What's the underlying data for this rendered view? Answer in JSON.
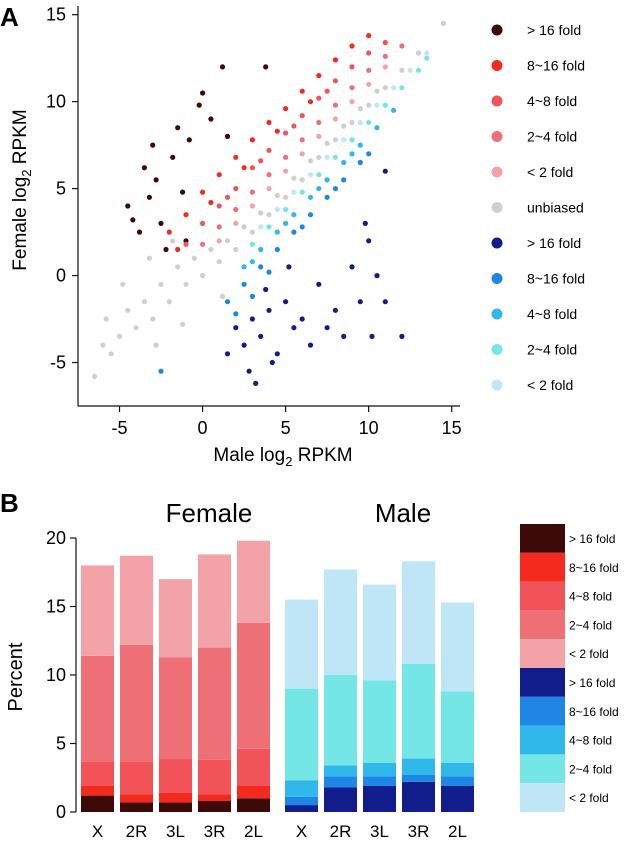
{
  "colors": {
    "female": [
      "#3d0a07",
      "#f42a1f",
      "#f15359",
      "#ef6f76",
      "#f3a3a8"
    ],
    "male": [
      "#101d8a",
      "#1f86e6",
      "#2fb8e9",
      "#74e6e6",
      "#bfe6f6"
    ],
    "unbiased": "#cfcfcf"
  },
  "chart_data": [
    {
      "panel": "A",
      "type": "scatter",
      "xlabel_pre": "Male log",
      "xlabel_sub": "2",
      "xlabel_post": " RPKM",
      "ylabel_pre": "Female log",
      "ylabel_sub": "2",
      "ylabel_post": " RPKM",
      "xlim": [
        -7.5,
        15.5
      ],
      "ylim": [
        -7.5,
        15.5
      ],
      "xticks": [
        -5,
        0,
        5,
        10,
        15
      ],
      "yticks": [
        -5,
        0,
        5,
        10,
        15
      ],
      "legend_position": "right",
      "legend": [
        "> 16 fold",
        "8~16 fold",
        "4~8 fold",
        "2~4 fold",
        "< 2 fold",
        "unbiased",
        "> 16 fold",
        "8~16 fold",
        "4~8 fold",
        "2~4 fold",
        "< 2 fold"
      ],
      "series": [
        {
          "group": "female",
          "level": "> 16 fold",
          "points": [
            [
              -3.5,
              6.2
            ],
            [
              -2.8,
              5.5
            ],
            [
              -1.5,
              8.5
            ],
            [
              -0.2,
              9.8
            ],
            [
              0.5,
              9.0
            ],
            [
              1.2,
              12.0
            ],
            [
              -3.2,
              4.5
            ],
            [
              -4.5,
              4.0
            ],
            [
              -2.5,
              3.0
            ],
            [
              -1.0,
              2.0
            ],
            [
              -3.8,
              2.5
            ],
            [
              -1.8,
              6.8
            ],
            [
              -0.8,
              7.8
            ],
            [
              0.0,
              10.5
            ],
            [
              1.5,
              8.0
            ],
            [
              -2.2,
              1.5
            ],
            [
              -3.0,
              7.5
            ],
            [
              -1.2,
              4.8
            ],
            [
              3.8,
              12.0
            ],
            [
              -4.2,
              3.2
            ]
          ]
        },
        {
          "group": "female",
          "level": "8~16 fold",
          "points": [
            [
              -2.0,
              2.5
            ],
            [
              -1.0,
              3.5
            ],
            [
              0.0,
              4.8
            ],
            [
              1.0,
              5.8
            ],
            [
              2.0,
              6.8
            ],
            [
              3.0,
              7.8
            ],
            [
              4.0,
              8.8
            ],
            [
              5.0,
              9.6
            ],
            [
              6.0,
              10.6
            ],
            [
              7.0,
              11.5
            ],
            [
              8.0,
              12.4
            ],
            [
              9.0,
              13.2
            ],
            [
              10.0,
              13.8
            ],
            [
              -1.5,
              1.5
            ],
            [
              0.5,
              4.2
            ],
            [
              2.5,
              6.2
            ],
            [
              4.5,
              8.3
            ],
            [
              6.5,
              10.0
            ]
          ]
        },
        {
          "group": "female",
          "level": "4~8 fold",
          "points": [
            [
              -1.0,
              1.8
            ],
            [
              0.0,
              3.0
            ],
            [
              1.0,
              4.0
            ],
            [
              2.0,
              5.0
            ],
            [
              3.0,
              6.2
            ],
            [
              4.0,
              7.2
            ],
            [
              5.0,
              8.2
            ],
            [
              6.0,
              9.2
            ],
            [
              7.0,
              10.2
            ],
            [
              8.0,
              11.2
            ],
            [
              9.0,
              12.0
            ],
            [
              10.0,
              12.8
            ],
            [
              11.0,
              13.4
            ],
            [
              1.5,
              4.5
            ],
            [
              3.5,
              6.6
            ],
            [
              5.5,
              8.6
            ],
            [
              7.5,
              10.6
            ]
          ]
        },
        {
          "group": "female",
          "level": "2~4 fold",
          "points": [
            [
              0.0,
              1.8
            ],
            [
              1.0,
              2.8
            ],
            [
              2.0,
              3.8
            ],
            [
              3.0,
              4.8
            ],
            [
              4.0,
              5.8
            ],
            [
              5.0,
              6.8
            ],
            [
              6.0,
              7.8
            ],
            [
              7.0,
              8.8
            ],
            [
              8.0,
              9.8
            ],
            [
              9.0,
              10.8
            ],
            [
              10.0,
              11.8
            ],
            [
              11.0,
              12.6
            ],
            [
              12.0,
              13.2
            ]
          ]
        },
        {
          "group": "female",
          "level": "< 2 fold",
          "points": [
            [
              1.0,
              2.0
            ],
            [
              2.0,
              3.0
            ],
            [
              3.0,
              4.0
            ],
            [
              4.0,
              5.0
            ],
            [
              5.0,
              6.0
            ],
            [
              6.0,
              7.0
            ],
            [
              7.0,
              8.0
            ],
            [
              8.0,
              9.0
            ],
            [
              9.0,
              10.0
            ],
            [
              10.0,
              11.0
            ],
            [
              11.0,
              12.0
            ]
          ]
        },
        {
          "group": "unbiased",
          "level": "unbiased",
          "points": [
            [
              -6.5,
              -5.8
            ],
            [
              -5.5,
              -4.5
            ],
            [
              -5.0,
              -3.5
            ],
            [
              -4.5,
              -2.0
            ],
            [
              -4.0,
              -3.0
            ],
            [
              -3.5,
              -1.5
            ],
            [
              -3.0,
              -2.5
            ],
            [
              -2.5,
              -0.5
            ],
            [
              -2.0,
              -1.5
            ],
            [
              -1.5,
              0.5
            ],
            [
              -1.0,
              -0.5
            ],
            [
              -0.5,
              1.0
            ],
            [
              0.0,
              0.0
            ],
            [
              0.5,
              1.5
            ],
            [
              1.0,
              0.8
            ],
            [
              1.5,
              2.0
            ],
            [
              2.0,
              1.5
            ],
            [
              2.5,
              2.8
            ],
            [
              3.0,
              2.5
            ],
            [
              3.5,
              3.6
            ],
            [
              4.0,
              3.5
            ],
            [
              4.5,
              4.6
            ],
            [
              5.0,
              4.5
            ],
            [
              5.5,
              5.6
            ],
            [
              6.0,
              5.5
            ],
            [
              6.5,
              6.6
            ],
            [
              7.0,
              6.8
            ],
            [
              7.5,
              7.6
            ],
            [
              8.0,
              7.8
            ],
            [
              8.5,
              8.6
            ],
            [
              9.0,
              8.8
            ],
            [
              9.5,
              9.6
            ],
            [
              10.0,
              9.8
            ],
            [
              10.5,
              10.6
            ],
            [
              11.0,
              10.8
            ],
            [
              12.0,
              11.8
            ],
            [
              13.0,
              12.8
            ],
            [
              14.5,
              14.5
            ],
            [
              -5.8,
              -2.5
            ],
            [
              -4.8,
              -0.5
            ],
            [
              -3.2,
              1.0
            ],
            [
              -1.8,
              2.0
            ],
            [
              -6.0,
              -4.0
            ],
            [
              -2.8,
              -4.0
            ],
            [
              -1.2,
              -2.8
            ],
            [
              1.2,
              -1.2
            ]
          ]
        },
        {
          "group": "male",
          "level": "> 16 fold",
          "points": [
            [
              2.0,
              -3.0
            ],
            [
              2.5,
              -4.0
            ],
            [
              3.0,
              -2.5
            ],
            [
              3.5,
              -3.5
            ],
            [
              4.0,
              -2.0
            ],
            [
              4.5,
              -4.5
            ],
            [
              5.0,
              -1.5
            ],
            [
              5.5,
              -3.0
            ],
            [
              6.0,
              -2.5
            ],
            [
              7.0,
              -0.5
            ],
            [
              7.5,
              -3.0
            ],
            [
              8.0,
              -2.0
            ],
            [
              9.0,
              0.5
            ],
            [
              10.0,
              2.0
            ],
            [
              11.0,
              -1.5
            ],
            [
              1.5,
              -4.5
            ],
            [
              2.8,
              -5.5
            ],
            [
              3.2,
              -6.2
            ],
            [
              4.2,
              -5.0
            ],
            [
              6.5,
              -4.0
            ],
            [
              9.5,
              -1.5
            ],
            [
              10.5,
              0.0
            ],
            [
              8.5,
              -3.5
            ],
            [
              5.2,
              0.5
            ],
            [
              3.8,
              -0.8
            ],
            [
              11.0,
              6.0
            ],
            [
              9.8,
              3.0
            ],
            [
              10.2,
              -3.5
            ],
            [
              12.0,
              -3.5
            ]
          ]
        },
        {
          "group": "male",
          "level": "8~16 fold",
          "points": [
            [
              1.5,
              -1.5
            ],
            [
              2.5,
              -0.5
            ],
            [
              3.5,
              0.5
            ],
            [
              4.5,
              1.5
            ],
            [
              5.5,
              2.5
            ],
            [
              6.5,
              3.5
            ],
            [
              7.5,
              4.5
            ],
            [
              8.5,
              5.5
            ],
            [
              9.5,
              6.5
            ],
            [
              2.0,
              -2.2
            ],
            [
              3.0,
              -1.2
            ],
            [
              4.0,
              0.2
            ],
            [
              6.0,
              2.8
            ],
            [
              8.0,
              5.0
            ],
            [
              10.0,
              7.0
            ],
            [
              -2.5,
              -5.5
            ]
          ]
        },
        {
          "group": "male",
          "level": "4~8 fold",
          "points": [
            [
              2.5,
              0.5
            ],
            [
              3.5,
              1.5
            ],
            [
              4.5,
              2.5
            ],
            [
              5.5,
              3.5
            ],
            [
              6.5,
              4.5
            ],
            [
              7.5,
              5.5
            ],
            [
              8.5,
              6.5
            ],
            [
              9.5,
              7.5
            ],
            [
              10.5,
              8.5
            ],
            [
              11.5,
              9.5
            ],
            [
              3.0,
              0.8
            ],
            [
              5.0,
              3.0
            ],
            [
              7.0,
              5.0
            ],
            [
              9.0,
              7.0
            ]
          ]
        },
        {
          "group": "male",
          "level": "2~4 fold",
          "points": [
            [
              3.0,
              1.8
            ],
            [
              4.0,
              2.8
            ],
            [
              5.0,
              3.8
            ],
            [
              6.0,
              4.8
            ],
            [
              7.0,
              5.8
            ],
            [
              8.0,
              6.8
            ],
            [
              9.0,
              7.8
            ],
            [
              10.0,
              8.8
            ],
            [
              11.0,
              9.8
            ],
            [
              12.0,
              10.8
            ],
            [
              13.0,
              11.8
            ],
            [
              13.5,
              12.5
            ]
          ]
        },
        {
          "group": "male",
          "level": "< 2 fold",
          "points": [
            [
              3.5,
              2.8
            ],
            [
              4.5,
              3.8
            ],
            [
              5.5,
              4.8
            ],
            [
              6.5,
              5.8
            ],
            [
              7.5,
              6.8
            ],
            [
              8.5,
              7.8
            ],
            [
              9.5,
              8.8
            ],
            [
              10.5,
              9.8
            ],
            [
              11.5,
              10.8
            ],
            [
              12.5,
              11.8
            ],
            [
              13.5,
              12.8
            ]
          ]
        }
      ]
    },
    {
      "panel": "B",
      "type": "bar",
      "stacked": true,
      "ylabel": "Percent",
      "ylim": [
        0,
        20
      ],
      "yticks": [
        0,
        5,
        10,
        15,
        20
      ],
      "group_titles": [
        "Female",
        "Male"
      ],
      "categories": [
        "X",
        "2R",
        "3L",
        "3R",
        "2L"
      ],
      "legend_position": "right",
      "legend": [
        "> 16 fold",
        "8~16 fold",
        "4~8 fold",
        "2~4 fold",
        "< 2 fold",
        "> 16 fold",
        "8~16 fold",
        "4~8 fold",
        "2~4 fold",
        "< 2 fold"
      ],
      "female": [
        {
          "level": "> 16 fold",
          "values": [
            1.2,
            0.7,
            0.7,
            0.8,
            1.0
          ]
        },
        {
          "level": "8~16 fold",
          "values": [
            0.7,
            0.6,
            0.7,
            0.5,
            0.9
          ]
        },
        {
          "level": "4~8 fold",
          "values": [
            1.8,
            2.4,
            2.5,
            2.5,
            2.7
          ]
        },
        {
          "level": "2~4 fold",
          "values": [
            7.7,
            8.5,
            7.4,
            8.2,
            9.2
          ]
        },
        {
          "level": "< 2 fold",
          "values": [
            6.6,
            6.5,
            5.7,
            6.8,
            6.0
          ]
        }
      ],
      "male": [
        {
          "level": "> 16 fold",
          "values": [
            0.5,
            1.8,
            1.9,
            2.2,
            1.9
          ]
        },
        {
          "level": "8~16 fold",
          "values": [
            0.6,
            0.8,
            0.7,
            0.5,
            0.7
          ]
        },
        {
          "level": "4~8 fold",
          "values": [
            1.2,
            0.8,
            1.0,
            1.2,
            1.0
          ]
        },
        {
          "level": "2~4 fold",
          "values": [
            6.7,
            6.6,
            6.0,
            6.9,
            5.2
          ]
        },
        {
          "level": "< 2 fold",
          "values": [
            6.5,
            7.7,
            7.0,
            7.5,
            6.5
          ]
        }
      ]
    }
  ],
  "panel_labels": [
    "A",
    "B"
  ]
}
